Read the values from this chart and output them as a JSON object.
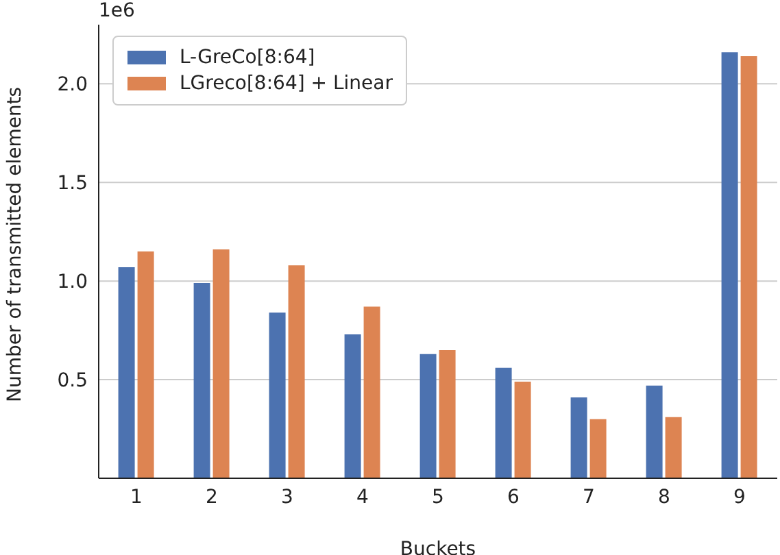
{
  "chart_data": {
    "type": "bar",
    "xlabel": "Buckets",
    "ylabel": "Number of transmitted elements",
    "annotations": [
      "1e6"
    ],
    "categories": [
      "1",
      "2",
      "3",
      "4",
      "5",
      "6",
      "7",
      "8",
      "9"
    ],
    "series": [
      {
        "name": "L-GreCo[8:64]",
        "color": "#4c72b0",
        "values": [
          1.07,
          0.99,
          0.84,
          0.73,
          0.63,
          0.56,
          0.41,
          0.47,
          2.16
        ]
      },
      {
        "name": "LGreco[8:64] + Linear",
        "color": "#dd8452",
        "values": [
          1.15,
          1.16,
          1.08,
          0.87,
          0.65,
          0.49,
          0.3,
          0.31,
          2.14
        ]
      }
    ],
    "ylim": [
      0,
      2.3
    ],
    "yticks": [
      {
        "value": 0.5,
        "label": "0.5"
      },
      {
        "value": 1.0,
        "label": "1.0"
      },
      {
        "value": 1.5,
        "label": "1.5"
      },
      {
        "value": 2.0,
        "label": "2.0"
      }
    ],
    "grid": "y",
    "legend": "top left"
  }
}
